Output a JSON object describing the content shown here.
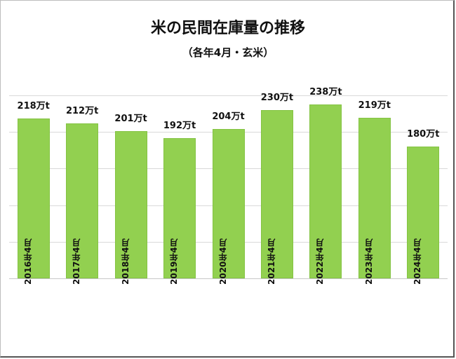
{
  "header": {
    "title": "米の民間在庫量の推移",
    "subtitle": "（各年4月・玄米）"
  },
  "chart_data": {
    "type": "bar",
    "title": "米の民間在庫量の推移",
    "subtitle": "（各年4月・玄米）",
    "xlabel": "",
    "ylabel": "",
    "unit": "万t",
    "categories": [
      "2016年4月",
      "2017年4月",
      "2018年4月",
      "2019年4月",
      "2020年4月",
      "2021年4月",
      "2022年4月",
      "2023年4月",
      "2024年4月"
    ],
    "values": [
      218,
      212,
      201,
      192,
      204,
      230,
      238,
      219,
      180
    ],
    "data_labels": [
      "218万t",
      "212万t",
      "201万t",
      "192万t",
      "204万t",
      "230万t",
      "238万t",
      "219万t",
      "180万t"
    ],
    "ylim": [
      0,
      250
    ],
    "grid_step": 50,
    "grid": true,
    "y_tick_labels_visible": false,
    "legend": "none",
    "bar_color": "#92d050"
  }
}
